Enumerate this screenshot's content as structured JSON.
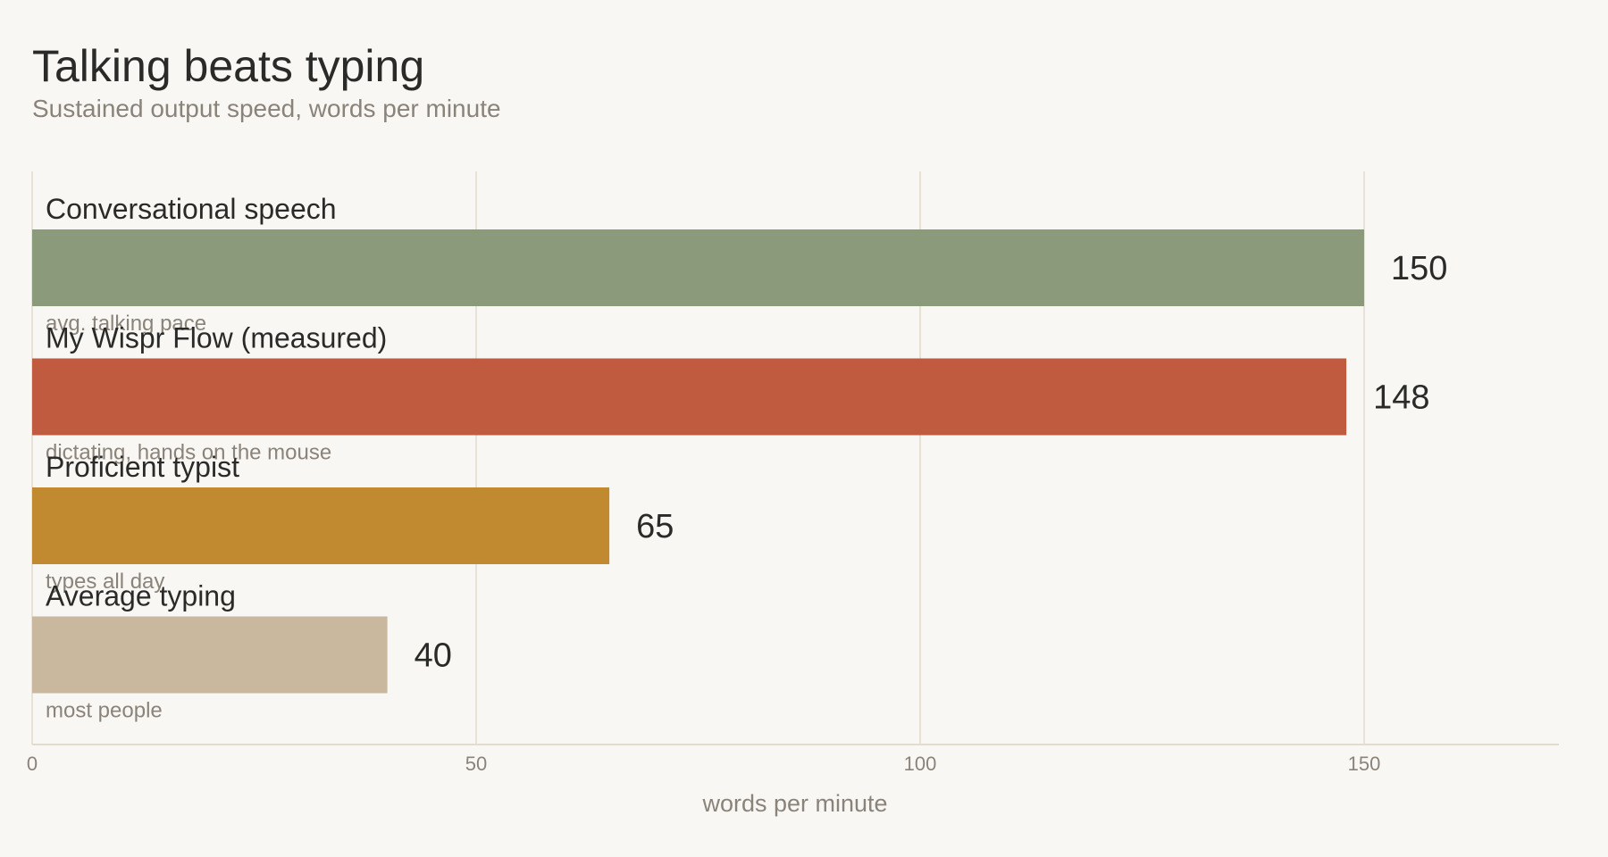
{
  "chart_data": {
    "type": "bar",
    "orientation": "horizontal",
    "title": "Talking beats typing",
    "subtitle": "Sustained output speed, words per minute",
    "xlabel": "words per minute",
    "xlim": [
      0,
      172
    ],
    "xticks": [
      "0",
      "50",
      "100",
      "150"
    ],
    "grid": true,
    "categories": [
      "Conversational speech",
      "My Wispr Flow (measured)",
      "Proficient typist",
      "Average typing"
    ],
    "notes": [
      "avg. talking pace",
      "dictating, hands on the mouse",
      "types all day",
      "most people"
    ],
    "values": [
      150,
      148,
      65,
      40
    ],
    "value_labels": [
      "150",
      "148",
      "65",
      "40"
    ],
    "colors": [
      "#8b9a7b",
      "#c05b3f",
      "#c28a30",
      "#c9b89d"
    ]
  }
}
